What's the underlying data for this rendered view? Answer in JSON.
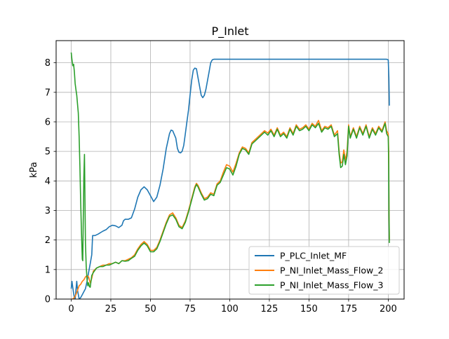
{
  "chart_data": {
    "type": "line",
    "title": "P_Inlet",
    "xlabel": "",
    "ylabel": "kPa",
    "xlim": [
      -9.5,
      210
    ],
    "ylim": [
      0,
      8.75
    ],
    "xticks": [
      0,
      25,
      50,
      75,
      100,
      125,
      150,
      175,
      200
    ],
    "yticks": [
      0,
      1,
      2,
      3,
      4,
      5,
      6,
      7,
      8
    ],
    "grid": true,
    "legend_position": "lower-right",
    "series": [
      {
        "name": "P_PLC_Inlet_MF",
        "color": "#1f77b4",
        "points": [
          [
            0,
            0.35
          ],
          [
            0.5,
            0.6
          ],
          [
            1,
            0.4
          ],
          [
            1.5,
            0.2
          ],
          [
            2,
            0.05
          ],
          [
            2.5,
            0.0
          ],
          [
            3,
            0.3
          ],
          [
            3.5,
            0.6
          ],
          [
            4,
            0.3
          ],
          [
            5,
            0.0
          ],
          [
            6,
            0.05
          ],
          [
            7,
            0.15
          ],
          [
            8,
            0.25
          ],
          [
            9,
            0.35
          ],
          [
            10,
            0.6
          ],
          [
            11,
            0.9
          ],
          [
            12,
            1.2
          ],
          [
            13,
            1.5
          ],
          [
            13.5,
            2.15
          ],
          [
            15,
            2.15
          ],
          [
            17,
            2.2
          ],
          [
            20,
            2.3
          ],
          [
            22,
            2.35
          ],
          [
            24,
            2.45
          ],
          [
            26,
            2.5
          ],
          [
            28,
            2.48
          ],
          [
            30,
            2.42
          ],
          [
            32,
            2.5
          ],
          [
            33,
            2.65
          ],
          [
            34,
            2.7
          ],
          [
            36,
            2.7
          ],
          [
            38,
            2.75
          ],
          [
            40,
            3.05
          ],
          [
            42,
            3.45
          ],
          [
            44,
            3.7
          ],
          [
            46,
            3.8
          ],
          [
            48,
            3.7
          ],
          [
            50,
            3.5
          ],
          [
            52,
            3.3
          ],
          [
            54,
            3.45
          ],
          [
            56,
            3.85
          ],
          [
            58,
            4.4
          ],
          [
            60,
            5.1
          ],
          [
            62,
            5.6
          ],
          [
            63,
            5.72
          ],
          [
            64,
            5.7
          ],
          [
            66,
            5.45
          ],
          [
            67,
            5.1
          ],
          [
            68,
            4.97
          ],
          [
            69,
            4.95
          ],
          [
            70,
            5.0
          ],
          [
            71,
            5.2
          ],
          [
            72,
            5.6
          ],
          [
            73,
            6.0
          ],
          [
            74,
            6.4
          ],
          [
            75,
            6.9
          ],
          [
            76,
            7.4
          ],
          [
            77,
            7.75
          ],
          [
            78,
            7.82
          ],
          [
            79,
            7.8
          ],
          [
            80,
            7.5
          ],
          [
            81,
            7.2
          ],
          [
            82,
            6.9
          ],
          [
            83,
            6.82
          ],
          [
            84,
            6.9
          ],
          [
            85,
            7.1
          ],
          [
            86,
            7.4
          ],
          [
            87,
            7.7
          ],
          [
            88,
            8.0
          ],
          [
            89,
            8.1
          ],
          [
            90,
            8.12
          ],
          [
            92,
            8.12
          ],
          [
            100,
            8.12
          ],
          [
            120,
            8.12
          ],
          [
            150,
            8.12
          ],
          [
            180,
            8.12
          ],
          [
            199,
            8.12
          ],
          [
            200,
            8.1
          ],
          [
            200.4,
            7.5
          ],
          [
            200.7,
            6.55
          ]
        ]
      },
      {
        "name": "P_NI_Inlet_Mass_Flow_2",
        "color": "#ff7f0e",
        "points": [
          [
            0,
            0.0
          ],
          [
            1,
            0.0
          ],
          [
            2,
            0.05
          ],
          [
            3,
            0.15
          ],
          [
            4,
            0.3
          ],
          [
            5,
            0.45
          ],
          [
            6,
            0.5
          ],
          [
            7,
            0.6
          ],
          [
            8,
            0.65
          ],
          [
            9,
            0.75
          ],
          [
            10,
            0.8
          ],
          [
            11,
            0.75
          ],
          [
            12,
            0.55
          ],
          [
            13,
            0.7
          ],
          [
            14,
            0.95
          ],
          [
            16,
            1.05
          ],
          [
            18,
            1.1
          ],
          [
            20,
            1.15
          ],
          [
            22,
            1.15
          ],
          [
            24,
            1.2
          ],
          [
            26,
            1.2
          ],
          [
            28,
            1.25
          ],
          [
            30,
            1.2
          ],
          [
            32,
            1.3
          ],
          [
            34,
            1.3
          ],
          [
            36,
            1.35
          ],
          [
            38,
            1.4
          ],
          [
            40,
            1.5
          ],
          [
            42,
            1.7
          ],
          [
            44,
            1.85
          ],
          [
            46,
            1.95
          ],
          [
            48,
            1.85
          ],
          [
            50,
            1.65
          ],
          [
            52,
            1.65
          ],
          [
            54,
            1.75
          ],
          [
            56,
            2.0
          ],
          [
            58,
            2.3
          ],
          [
            60,
            2.6
          ],
          [
            62,
            2.85
          ],
          [
            64,
            2.92
          ],
          [
            66,
            2.75
          ],
          [
            68,
            2.5
          ],
          [
            70,
            2.42
          ],
          [
            72,
            2.65
          ],
          [
            74,
            3.0
          ],
          [
            76,
            3.4
          ],
          [
            78,
            3.8
          ],
          [
            79,
            3.92
          ],
          [
            80,
            3.85
          ],
          [
            82,
            3.6
          ],
          [
            84,
            3.4
          ],
          [
            86,
            3.45
          ],
          [
            88,
            3.6
          ],
          [
            90,
            3.55
          ],
          [
            92,
            3.9
          ],
          [
            94,
            4.0
          ],
          [
            96,
            4.3
          ],
          [
            98,
            4.55
          ],
          [
            100,
            4.5
          ],
          [
            102,
            4.3
          ],
          [
            104,
            4.6
          ],
          [
            106,
            4.95
          ],
          [
            108,
            5.15
          ],
          [
            110,
            5.1
          ],
          [
            112,
            4.95
          ],
          [
            114,
            5.3
          ],
          [
            116,
            5.4
          ],
          [
            118,
            5.5
          ],
          [
            120,
            5.6
          ],
          [
            122,
            5.7
          ],
          [
            124,
            5.62
          ],
          [
            126,
            5.75
          ],
          [
            128,
            5.55
          ],
          [
            130,
            5.8
          ],
          [
            132,
            5.55
          ],
          [
            134,
            5.65
          ],
          [
            136,
            5.5
          ],
          [
            138,
            5.8
          ],
          [
            140,
            5.6
          ],
          [
            142,
            5.9
          ],
          [
            144,
            5.75
          ],
          [
            146,
            5.8
          ],
          [
            148,
            5.9
          ],
          [
            150,
            5.75
          ],
          [
            152,
            5.95
          ],
          [
            154,
            5.85
          ],
          [
            156,
            6.05
          ],
          [
            158,
            5.7
          ],
          [
            160,
            5.85
          ],
          [
            162,
            5.8
          ],
          [
            164,
            5.9
          ],
          [
            166,
            5.55
          ],
          [
            168,
            5.7
          ],
          [
            169,
            5.0
          ],
          [
            170,
            4.6
          ],
          [
            171,
            4.65
          ],
          [
            172,
            5.05
          ],
          [
            173,
            4.7
          ],
          [
            174,
            5.0
          ],
          [
            175,
            5.9
          ],
          [
            176,
            5.5
          ],
          [
            178,
            5.8
          ],
          [
            180,
            5.5
          ],
          [
            182,
            5.85
          ],
          [
            184,
            5.6
          ],
          [
            186,
            5.9
          ],
          [
            188,
            5.5
          ],
          [
            190,
            5.8
          ],
          [
            192,
            5.6
          ],
          [
            194,
            5.85
          ],
          [
            196,
            5.7
          ],
          [
            198,
            6.0
          ],
          [
            199,
            5.7
          ],
          [
            200,
            5.6
          ],
          [
            200.3,
            5.0
          ],
          [
            200.5,
            3.0
          ],
          [
            200.7,
            2.0
          ]
        ]
      },
      {
        "name": "P_NI_Inlet_Mass_Flow_3",
        "color": "#2ca02c",
        "points": [
          [
            0,
            8.35
          ],
          [
            0.5,
            8.1
          ],
          [
            1,
            7.9
          ],
          [
            1.5,
            7.95
          ],
          [
            2,
            7.7
          ],
          [
            2.5,
            7.3
          ],
          [
            3,
            7.1
          ],
          [
            3.5,
            6.9
          ],
          [
            4,
            6.6
          ],
          [
            4.5,
            6.3
          ],
          [
            5,
            5.5
          ],
          [
            5.5,
            4.5
          ],
          [
            6,
            3.3
          ],
          [
            6.5,
            2.2
          ],
          [
            7,
            1.35
          ],
          [
            7.3,
            1.3
          ],
          [
            7.6,
            2.5
          ],
          [
            8,
            4.1
          ],
          [
            8.4,
            4.9
          ],
          [
            8.7,
            3.4
          ],
          [
            9,
            1.9
          ],
          [
            9.5,
            1.1
          ],
          [
            10,
            0.65
          ],
          [
            10.5,
            0.45
          ],
          [
            11,
            0.55
          ],
          [
            11.5,
            0.42
          ],
          [
            12,
            0.4
          ],
          [
            13,
            0.8
          ],
          [
            14,
            0.9
          ],
          [
            16,
            1.05
          ],
          [
            18,
            1.1
          ],
          [
            20,
            1.1
          ],
          [
            22,
            1.15
          ],
          [
            24,
            1.15
          ],
          [
            26,
            1.2
          ],
          [
            28,
            1.25
          ],
          [
            30,
            1.2
          ],
          [
            32,
            1.3
          ],
          [
            34,
            1.28
          ],
          [
            36,
            1.3
          ],
          [
            38,
            1.38
          ],
          [
            40,
            1.45
          ],
          [
            42,
            1.65
          ],
          [
            44,
            1.8
          ],
          [
            46,
            1.9
          ],
          [
            48,
            1.8
          ],
          [
            50,
            1.6
          ],
          [
            52,
            1.6
          ],
          [
            54,
            1.7
          ],
          [
            56,
            1.95
          ],
          [
            58,
            2.25
          ],
          [
            60,
            2.55
          ],
          [
            62,
            2.8
          ],
          [
            64,
            2.85
          ],
          [
            66,
            2.7
          ],
          [
            68,
            2.45
          ],
          [
            70,
            2.38
          ],
          [
            72,
            2.6
          ],
          [
            74,
            2.95
          ],
          [
            76,
            3.35
          ],
          [
            78,
            3.75
          ],
          [
            79,
            3.88
          ],
          [
            80,
            3.8
          ],
          [
            82,
            3.55
          ],
          [
            84,
            3.35
          ],
          [
            86,
            3.4
          ],
          [
            88,
            3.55
          ],
          [
            90,
            3.5
          ],
          [
            92,
            3.85
          ],
          [
            94,
            3.95
          ],
          [
            96,
            4.2
          ],
          [
            98,
            4.45
          ],
          [
            100,
            4.4
          ],
          [
            102,
            4.2
          ],
          [
            104,
            4.5
          ],
          [
            106,
            4.9
          ],
          [
            108,
            5.1
          ],
          [
            110,
            5.05
          ],
          [
            112,
            4.9
          ],
          [
            114,
            5.25
          ],
          [
            116,
            5.35
          ],
          [
            118,
            5.45
          ],
          [
            120,
            5.55
          ],
          [
            122,
            5.65
          ],
          [
            124,
            5.55
          ],
          [
            126,
            5.7
          ],
          [
            128,
            5.5
          ],
          [
            130,
            5.75
          ],
          [
            132,
            5.5
          ],
          [
            134,
            5.6
          ],
          [
            136,
            5.45
          ],
          [
            138,
            5.75
          ],
          [
            140,
            5.55
          ],
          [
            142,
            5.85
          ],
          [
            144,
            5.7
          ],
          [
            146,
            5.75
          ],
          [
            148,
            5.85
          ],
          [
            150,
            5.7
          ],
          [
            152,
            5.9
          ],
          [
            154,
            5.8
          ],
          [
            156,
            5.95
          ],
          [
            158,
            5.65
          ],
          [
            160,
            5.8
          ],
          [
            162,
            5.75
          ],
          [
            164,
            5.85
          ],
          [
            166,
            5.5
          ],
          [
            168,
            5.6
          ],
          [
            169,
            4.9
          ],
          [
            170,
            4.45
          ],
          [
            171,
            4.5
          ],
          [
            172,
            4.9
          ],
          [
            173,
            4.55
          ],
          [
            174,
            4.85
          ],
          [
            175,
            5.85
          ],
          [
            176,
            5.45
          ],
          [
            178,
            5.75
          ],
          [
            180,
            5.45
          ],
          [
            182,
            5.8
          ],
          [
            184,
            5.55
          ],
          [
            186,
            5.85
          ],
          [
            188,
            5.45
          ],
          [
            190,
            5.75
          ],
          [
            192,
            5.55
          ],
          [
            194,
            5.8
          ],
          [
            196,
            5.65
          ],
          [
            198,
            5.95
          ],
          [
            199,
            5.6
          ],
          [
            200,
            5.5
          ],
          [
            200.3,
            4.5
          ],
          [
            200.5,
            2.8
          ],
          [
            200.7,
            1.9
          ]
        ]
      }
    ]
  }
}
